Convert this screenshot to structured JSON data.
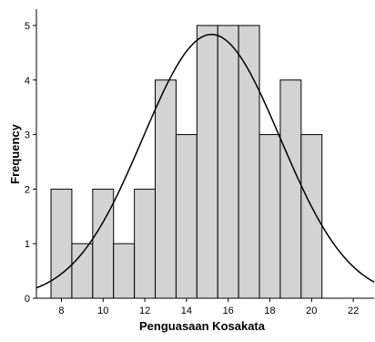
{
  "chart_data": {
    "type": "histogram",
    "title": "",
    "xlabel": "Penguasaan Kosakata",
    "ylabel": "Frequency",
    "xlim": [
      6.8,
      23.0
    ],
    "ylim": [
      0,
      5.3
    ],
    "x_ticks": [
      8,
      10,
      12,
      14,
      16,
      18,
      20,
      22
    ],
    "y_ticks": [
      0,
      1,
      2,
      3,
      4,
      5
    ],
    "bin_width": 1,
    "bins": [
      {
        "center": 8,
        "value": 2
      },
      {
        "center": 9,
        "value": 1
      },
      {
        "center": 10,
        "value": 2
      },
      {
        "center": 11,
        "value": 1
      },
      {
        "center": 12,
        "value": 2
      },
      {
        "center": 13,
        "value": 4
      },
      {
        "center": 14,
        "value": 3
      },
      {
        "center": 15,
        "value": 5
      },
      {
        "center": 16,
        "value": 5
      },
      {
        "center": 17,
        "value": 5
      },
      {
        "center": 18,
        "value": 3
      },
      {
        "center": 19,
        "value": 4
      },
      {
        "center": 20,
        "value": 3
      }
    ],
    "normal_curve": {
      "mean": 15.2,
      "sd": 3.3,
      "n": 40
    },
    "grid": false,
    "colors": {
      "bar_fill": "#d3d3d3",
      "bar_edge": "#000000",
      "curve": "#000000"
    }
  }
}
